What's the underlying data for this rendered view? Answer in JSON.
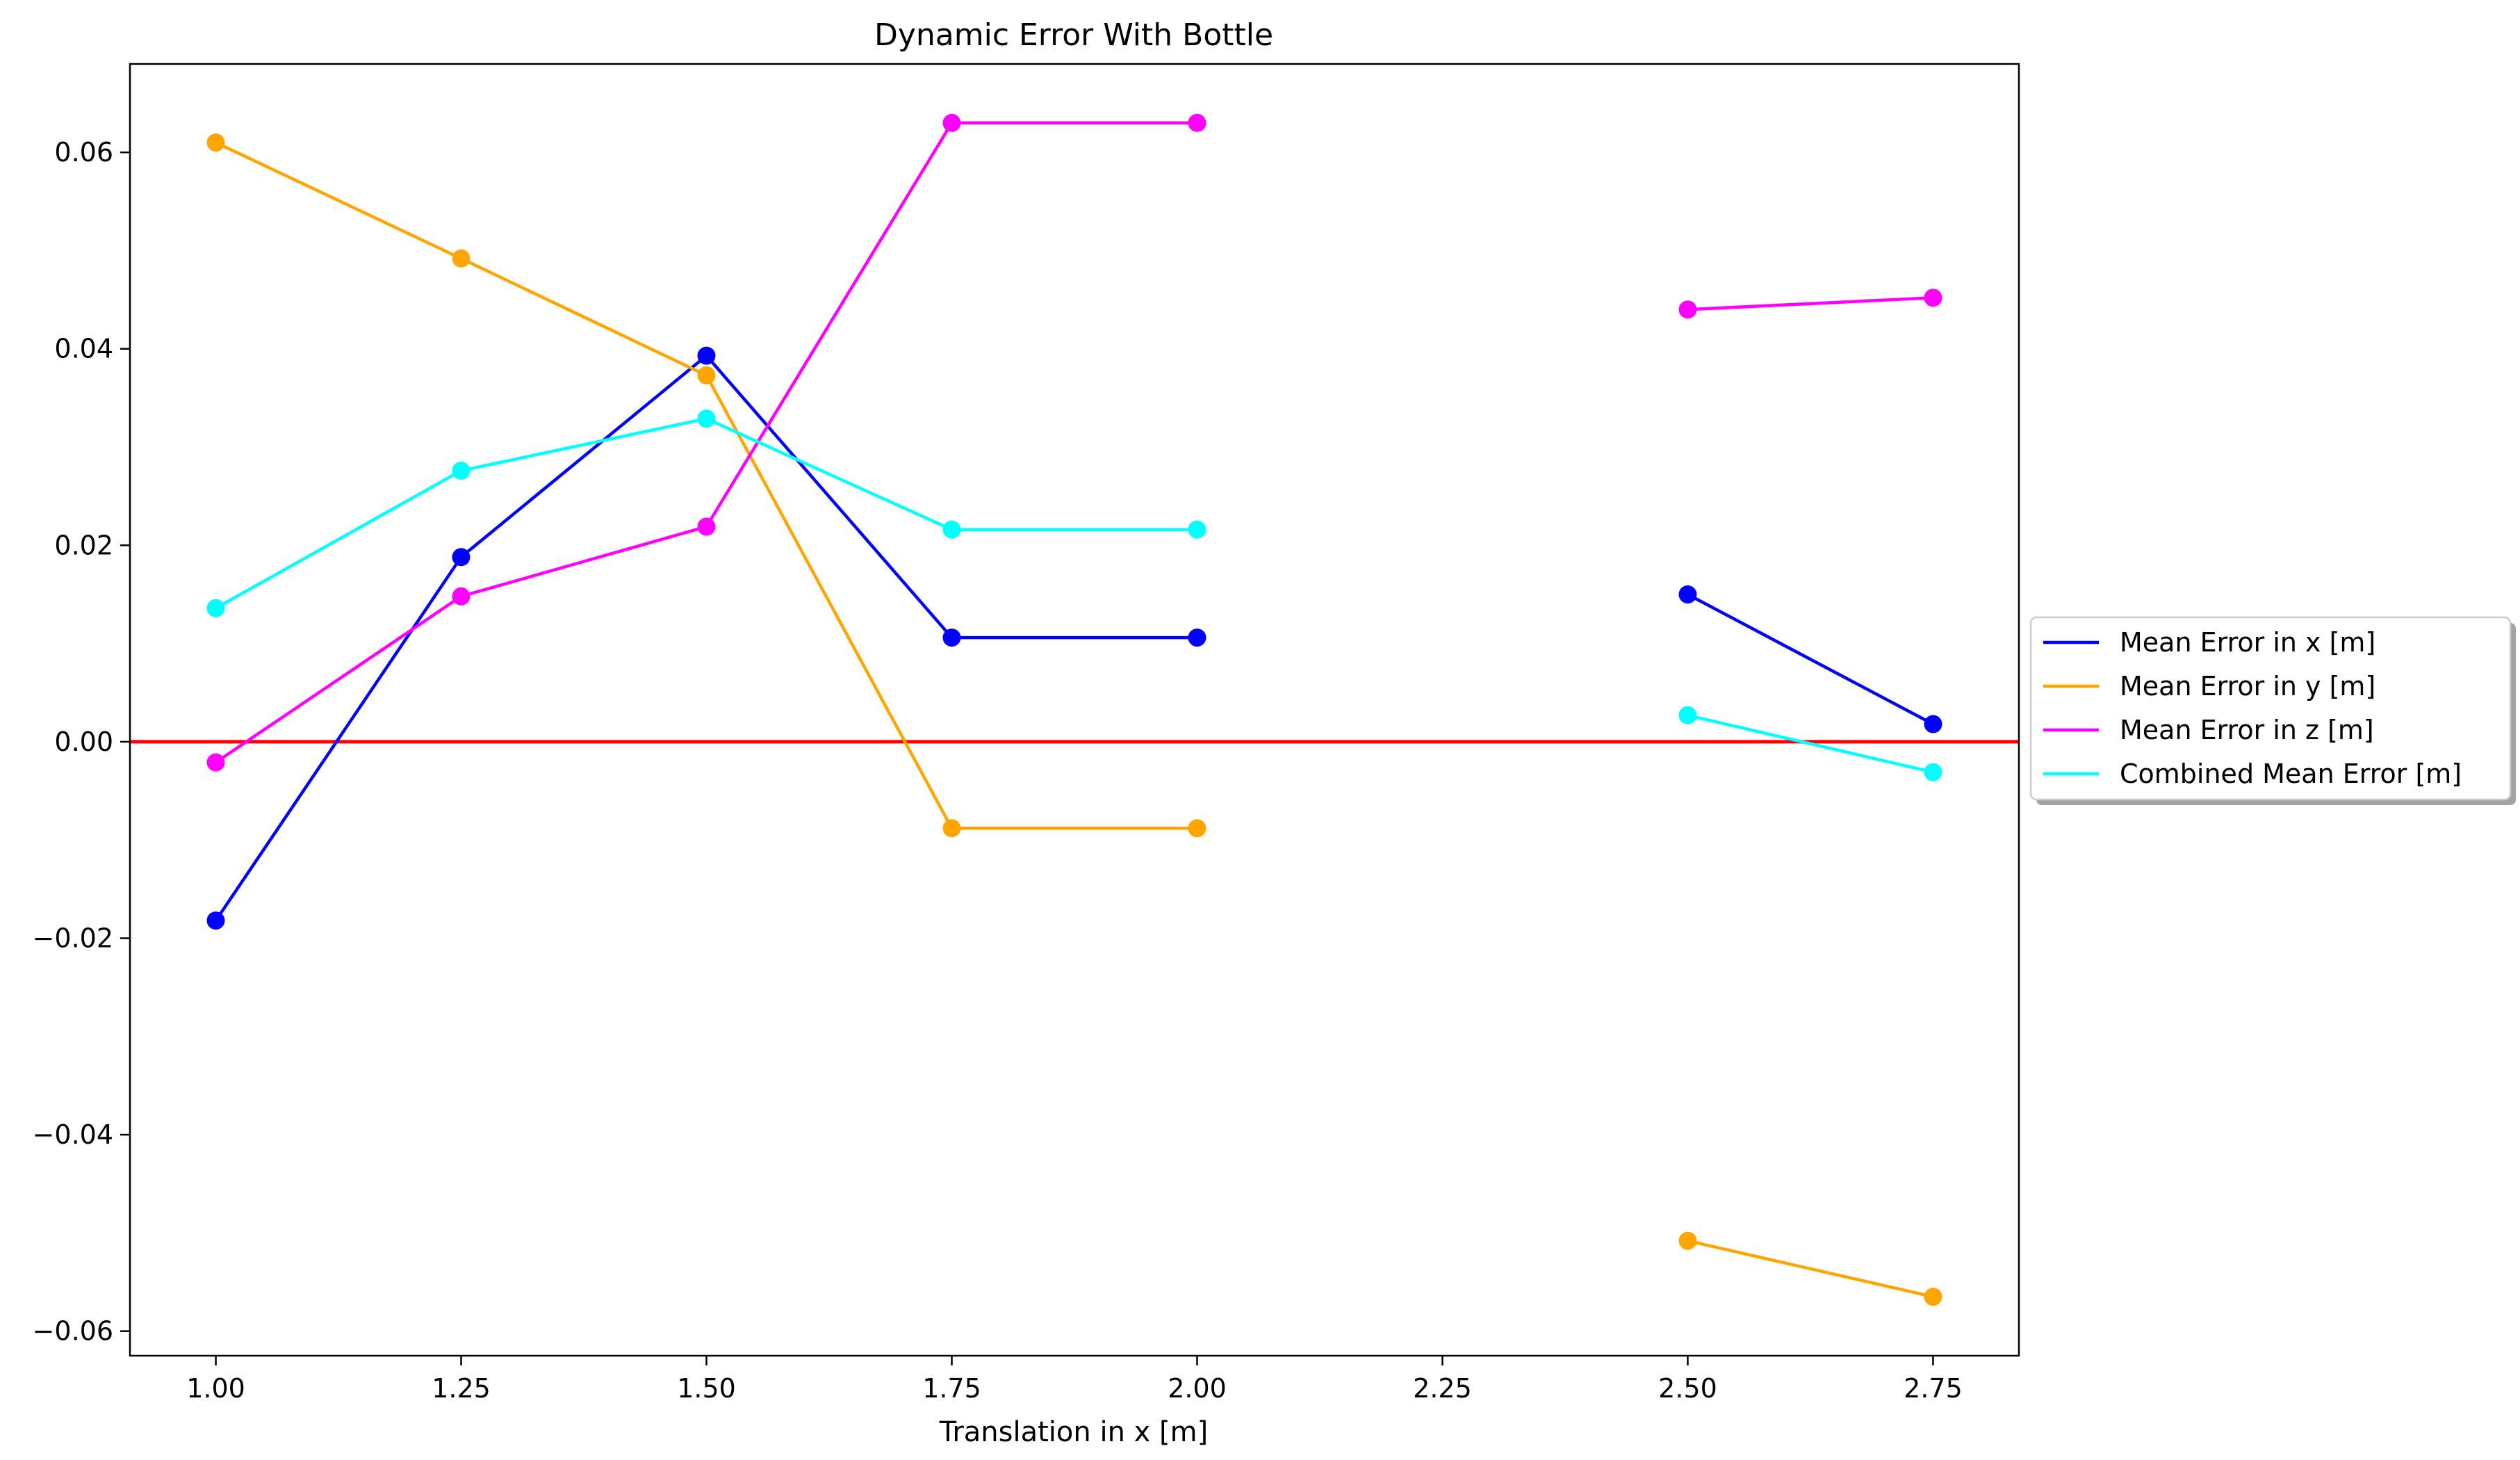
{
  "chart_data": {
    "type": "line",
    "title": "Dynamic Error With Bottle",
    "xlabel": "Translation in x [m]",
    "ylabel": "",
    "xlim": [
      0.9125,
      2.8375
    ],
    "ylim": [
      -0.0625,
      0.069
    ],
    "xticks": [
      1.0,
      1.25,
      1.5,
      1.75,
      2.0,
      2.25,
      2.5,
      2.75
    ],
    "xtick_labels": [
      "1.00",
      "1.25",
      "1.50",
      "1.75",
      "2.00",
      "2.25",
      "2.50",
      "2.75"
    ],
    "yticks": [
      -0.06,
      -0.04,
      -0.02,
      0.0,
      0.02,
      0.04,
      0.06
    ],
    "ytick_labels": [
      "−0.06",
      "−0.04",
      "−0.02",
      "0.00",
      "0.02",
      "0.04",
      "0.06"
    ],
    "grid": false,
    "legend_position": "center-right-outside",
    "reference_line": {
      "y": 0,
      "color": "#ff0000"
    },
    "series": [
      {
        "name": "Mean Error in x [m]",
        "color": "#0000ff",
        "segments": [
          [
            [
              1.0,
              -0.0182
            ],
            [
              1.25,
              0.0188
            ],
            [
              1.5,
              0.0393
            ],
            [
              1.75,
              0.0106
            ],
            [
              2.0,
              0.0106
            ]
          ],
          [
            [
              2.5,
              0.015
            ],
            [
              2.75,
              0.0018
            ]
          ]
        ]
      },
      {
        "name": "Mean Error in y [m]",
        "color": "#ffa500",
        "segments": [
          [
            [
              1.0,
              0.061
            ],
            [
              1.25,
              0.0492
            ],
            [
              1.5,
              0.0373
            ],
            [
              1.75,
              -0.0088
            ],
            [
              2.0,
              -0.0088
            ]
          ],
          [
            [
              2.5,
              -0.0508
            ],
            [
              2.75,
              -0.0565
            ]
          ]
        ]
      },
      {
        "name": "Mean Error in z [m]",
        "color": "#ff00ff",
        "segments": [
          [
            [
              1.0,
              -0.0021
            ],
            [
              1.25,
              0.0148
            ],
            [
              1.5,
              0.0219
            ],
            [
              1.75,
              0.063
            ],
            [
              2.0,
              0.063
            ]
          ],
          [
            [
              2.5,
              0.044
            ],
            [
              2.75,
              0.0452
            ]
          ]
        ]
      },
      {
        "name": "Combined Mean Error [m]",
        "color": "#00ffff",
        "segments": [
          [
            [
              1.0,
              0.0136
            ],
            [
              1.25,
              0.0276
            ],
            [
              1.5,
              0.0329
            ],
            [
              1.75,
              0.0216
            ],
            [
              2.0,
              0.0216
            ]
          ],
          [
            [
              2.5,
              0.0027
            ],
            [
              2.75,
              -0.0031
            ]
          ]
        ]
      }
    ]
  }
}
